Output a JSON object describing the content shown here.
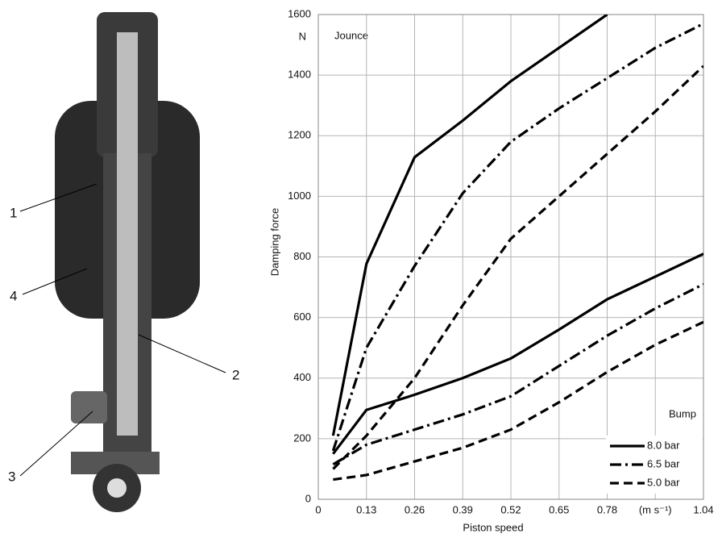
{
  "illustration": {
    "callouts": [
      "1",
      "2",
      "3",
      "4"
    ]
  },
  "chart_data": {
    "type": "line",
    "x_label": "Piston speed",
    "y_label": "Damping force",
    "y_unit": "N",
    "jounce_label": "Jounce",
    "bump_label": "Bump",
    "x": [
      0.04,
      0.13,
      0.26,
      0.39,
      0.52,
      0.65,
      0.78,
      0.91,
      1.04
    ],
    "series": [
      {
        "name": "8.0 bar",
        "color": "#000000",
        "dash": "solid",
        "jounce": [
          210,
          777,
          1129,
          1250,
          1380,
          1490,
          1600,
          null,
          null
        ],
        "bump": [
          150,
          295,
          345,
          400,
          465,
          560,
          660,
          735,
          810
        ]
      },
      {
        "name": "6.5 bar",
        "color": "#000000",
        "dash": "dashdot",
        "jounce": [
          160,
          500,
          770,
          1010,
          1180,
          1290,
          1390,
          1490,
          1570
        ],
        "bump": [
          115,
          180,
          230,
          280,
          340,
          440,
          540,
          630,
          710
        ]
      },
      {
        "name": "5.0 bar",
        "color": "#000000",
        "dash": "dashed",
        "jounce": [
          100,
          210,
          400,
          640,
          860,
          1000,
          1140,
          1280,
          1430
        ],
        "bump": [
          65,
          80,
          125,
          170,
          230,
          320,
          420,
          510,
          585
        ]
      }
    ],
    "xlim": [
      0,
      1.04
    ],
    "xticks": [
      0,
      0.13,
      0.26,
      0.39,
      0.52,
      0.65,
      0.78,
      {
        "value": 0.91,
        "label": "(m s⁻¹)"
      },
      1.04
    ],
    "ylim": [
      0,
      1600
    ],
    "yticks": [
      0,
      200,
      400,
      600,
      800,
      1000,
      1200,
      1400,
      1600
    ],
    "grid": true,
    "legend": "lower right"
  }
}
